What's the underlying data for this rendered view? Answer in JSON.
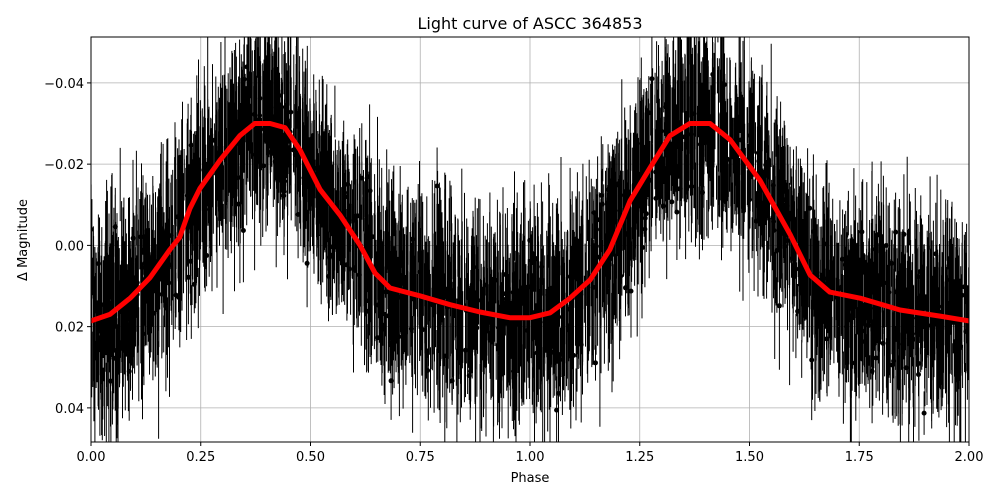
{
  "chart_data": {
    "type": "scatter",
    "title": "Light curve of ASCC 364853",
    "xlabel": "Phase",
    "ylabel": "Δ Magnitude",
    "xlim": [
      0,
      2
    ],
    "ylim": [
      0.0484,
      -0.0513
    ],
    "y_inverted": true,
    "grid": true,
    "x_ticks": [
      0,
      0.25,
      0.5,
      0.75,
      1.0,
      1.25,
      1.5,
      1.75,
      2.0
    ],
    "x_tick_labels": [
      "0.00",
      "0.25",
      "0.50",
      "0.75",
      "1.00",
      "1.25",
      "1.50",
      "1.75",
      "2.00"
    ],
    "y_ticks": [
      -0.04,
      -0.02,
      0.0,
      0.02,
      0.04
    ],
    "y_tick_labels": [
      "−0.04",
      "−0.02",
      "0.00",
      "0.02",
      "0.04"
    ],
    "series": [
      {
        "kind": "observations-with-errorbars",
        "color": "#000000"
      },
      {
        "kind": "binned-model-line",
        "color": "#ff0000",
        "x": [
          0,
          0.043,
          0.089,
          0.134,
          0.18,
          0.202,
          0.225,
          0.248,
          0.294,
          0.339,
          0.373,
          0.408,
          0.442,
          0.476,
          0.522,
          0.567,
          0.613,
          0.647,
          0.681,
          0.749,
          0.818,
          0.886,
          0.954,
          1.0,
          1.046,
          1.091,
          1.137,
          1.182,
          1.228,
          1.273,
          1.319,
          1.364,
          1.41,
          1.456,
          1.524,
          1.593,
          1.638,
          1.683,
          1.752,
          1.843,
          1.934,
          2.0
        ],
        "y": [
          0.0186,
          0.017,
          0.013,
          0.008,
          0.001,
          -0.002,
          -0.009,
          -0.014,
          -0.021,
          -0.027,
          -0.03,
          -0.03,
          -0.029,
          -0.0235,
          -0.0137,
          -0.0075,
          0.0,
          0.0068,
          0.0105,
          0.0124,
          0.0146,
          0.0164,
          0.0178,
          0.0178,
          0.0166,
          0.013,
          0.0085,
          0.001,
          -0.011,
          -0.019,
          -0.027,
          -0.03,
          -0.03,
          -0.026,
          -0.016,
          -0.0026,
          0.0073,
          0.0115,
          0.013,
          0.0159,
          0.0174,
          0.0186
        ]
      }
    ]
  }
}
